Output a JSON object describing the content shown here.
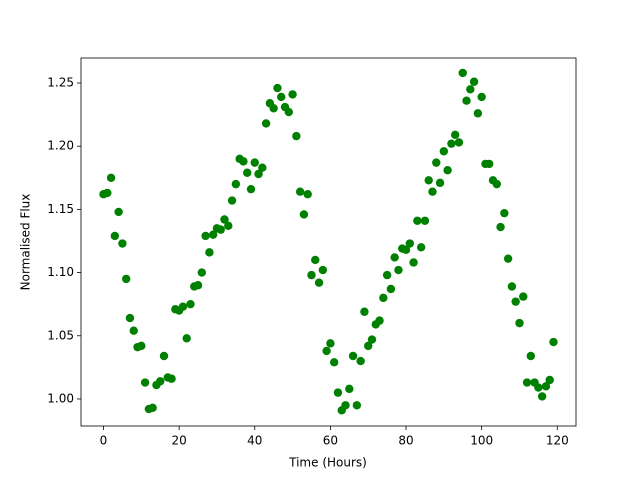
{
  "chart_data": {
    "type": "scatter",
    "x_label": "Time (Hours)",
    "y_label": "Normalised Flux",
    "color": "green",
    "x": [
      0,
      1,
      2,
      3,
      4,
      5,
      6,
      7,
      8,
      9,
      10,
      11,
      12,
      13,
      14,
      15,
      16,
      17,
      18,
      19,
      20,
      21,
      22,
      23,
      24,
      25,
      26,
      27,
      28,
      29,
      30,
      31,
      32,
      33,
      34,
      35,
      36,
      37,
      38,
      39,
      40,
      41,
      42,
      43,
      44,
      45,
      46,
      47,
      48,
      49,
      50,
      51,
      52,
      53,
      54,
      55,
      56,
      57,
      58,
      59,
      60,
      61,
      62,
      63,
      64,
      65,
      66,
      67,
      68,
      69,
      70,
      71,
      72,
      73,
      74,
      75,
      76,
      77,
      78,
      79,
      80,
      81,
      82,
      83,
      84,
      85,
      86,
      87,
      88,
      89,
      90,
      91,
      92,
      93,
      94,
      95,
      96,
      97,
      98,
      99,
      100,
      101,
      102,
      103,
      104,
      105,
      106,
      107,
      108,
      109,
      110,
      111,
      112,
      113,
      114,
      115,
      116,
      117,
      118,
      119
    ],
    "values": [
      1.162,
      1.163,
      1.175,
      1.129,
      1.148,
      1.123,
      1.095,
      1.064,
      1.054,
      1.041,
      1.042,
      1.013,
      0.992,
      0.993,
      1.011,
      1.014,
      1.034,
      1.017,
      1.016,
      1.071,
      1.07,
      1.073,
      1.048,
      1.075,
      1.089,
      1.09,
      1.1,
      1.129,
      1.116,
      1.13,
      1.135,
      1.134,
      1.142,
      1.137,
      1.157,
      1.17,
      1.19,
      1.188,
      1.179,
      1.166,
      1.187,
      1.178,
      1.183,
      1.218,
      1.234,
      1.23,
      1.246,
      1.239,
      1.231,
      1.227,
      1.241,
      1.208,
      1.164,
      1.146,
      1.162,
      1.098,
      1.11,
      1.092,
      1.102,
      1.038,
      1.044,
      1.029,
      1.005,
      0.991,
      0.995,
      1.008,
      1.034,
      0.995,
      1.03,
      1.069,
      1.042,
      1.047,
      1.059,
      1.062,
      1.08,
      1.098,
      1.087,
      1.112,
      1.102,
      1.119,
      1.118,
      1.123,
      1.108,
      1.141,
      1.12,
      1.141,
      1.173,
      1.164,
      1.187,
      1.171,
      1.196,
      1.181,
      1.202,
      1.209,
      1.203,
      1.258,
      1.236,
      1.245,
      1.251,
      1.226,
      1.239,
      1.186,
      1.186,
      1.173,
      1.17,
      1.136,
      1.147,
      1.111,
      1.089,
      1.077,
      1.06,
      1.081,
      1.013,
      1.034,
      1.013,
      1.009,
      1.002,
      1.01,
      1.015,
      1.045
    ],
    "xlim": [
      -5.95,
      124.95
    ],
    "ylim": [
      0.9786,
      1.2698
    ],
    "xticks": [
      0,
      20,
      40,
      60,
      80,
      100,
      120
    ],
    "yticks": [
      {
        "value": 1.0,
        "label": "1.00"
      },
      1.05,
      {
        "value": 1.1,
        "label": "1.10"
      },
      1.15,
      {
        "value": 1.2,
        "label": "1.20"
      },
      1.25
    ],
    "grid": false
  }
}
